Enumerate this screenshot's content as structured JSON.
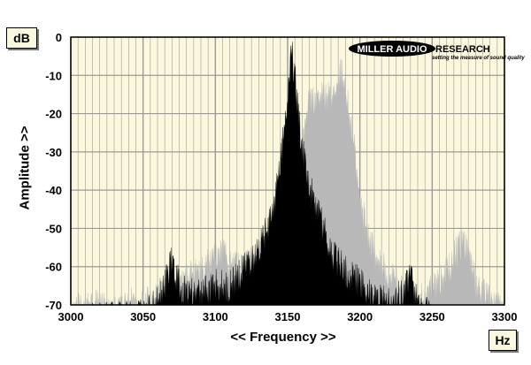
{
  "units": {
    "y": "dB",
    "x": "Hz"
  },
  "logo": {
    "name_1": "MILLER AUDIO",
    "name_2": "RESEARCH",
    "tagline": "setting the measure of sound quality"
  },
  "colors": {
    "plot_bg": "#fbf8dd",
    "series_primary": "#000000",
    "series_secondary": "#b8b8b8",
    "grid": "#9a9a9a"
  },
  "chart_data": {
    "type": "area",
    "xlabel": "<< Frequency >>",
    "ylabel": "Amplitude >>",
    "xlim": [
      3000,
      3300
    ],
    "ylim": [
      -70,
      0
    ],
    "x_ticks": [
      3000,
      3050,
      3100,
      3150,
      3200,
      3250,
      3300
    ],
    "y_ticks": [
      0,
      -10,
      -20,
      -30,
      -40,
      -50,
      -60,
      -70
    ],
    "grid": true,
    "series": [
      {
        "color": "#b8b8b8",
        "x": [
          3000,
          3010,
          3020,
          3030,
          3040,
          3050,
          3060,
          3070,
          3080,
          3090,
          3100,
          3105,
          3110,
          3120,
          3130,
          3140,
          3150,
          3155,
          3160,
          3162,
          3165,
          3170,
          3175,
          3180,
          3183,
          3185,
          3188,
          3190,
          3195,
          3200,
          3205,
          3210,
          3215,
          3220,
          3225,
          3230,
          3240,
          3250,
          3255,
          3260,
          3265,
          3270,
          3272,
          3275,
          3280,
          3290,
          3300
        ],
        "values": [
          -67,
          -66,
          -66,
          -67,
          -65,
          -66,
          -63,
          -61,
          -59,
          -57,
          -53,
          -52,
          -56,
          -56,
          -53,
          -51,
          -45,
          -36,
          -24,
          -18,
          -13,
          -10,
          -12,
          -10,
          -8,
          -5,
          -4,
          -10,
          -20,
          -38,
          -47,
          -52,
          -55,
          -58,
          -60,
          -61,
          -64,
          -62,
          -60,
          -57,
          -53,
          -50,
          -48,
          -52,
          -60,
          -65,
          -67
        ]
      },
      {
        "color": "#000000",
        "x": [
          3000,
          3020,
          3040,
          3050,
          3060,
          3068,
          3070,
          3072,
          3080,
          3090,
          3100,
          3110,
          3120,
          3130,
          3140,
          3145,
          3150,
          3152,
          3153,
          3155,
          3160,
          3165,
          3170,
          3180,
          3190,
          3200,
          3210,
          3220,
          3230,
          3235,
          3240,
          3250,
          3260,
          3270,
          3280,
          3300
        ],
        "values": [
          -70,
          -69,
          -69,
          -68,
          -65,
          -57,
          -53,
          -58,
          -63,
          -63,
          -60,
          -61,
          -56,
          -52,
          -41,
          -28,
          -12,
          -2,
          0,
          -6,
          -25,
          -35,
          -40,
          -52,
          -57,
          -60,
          -64,
          -65,
          -63,
          -58,
          -66,
          -69,
          -70,
          -70,
          -70,
          -70
        ]
      }
    ]
  }
}
